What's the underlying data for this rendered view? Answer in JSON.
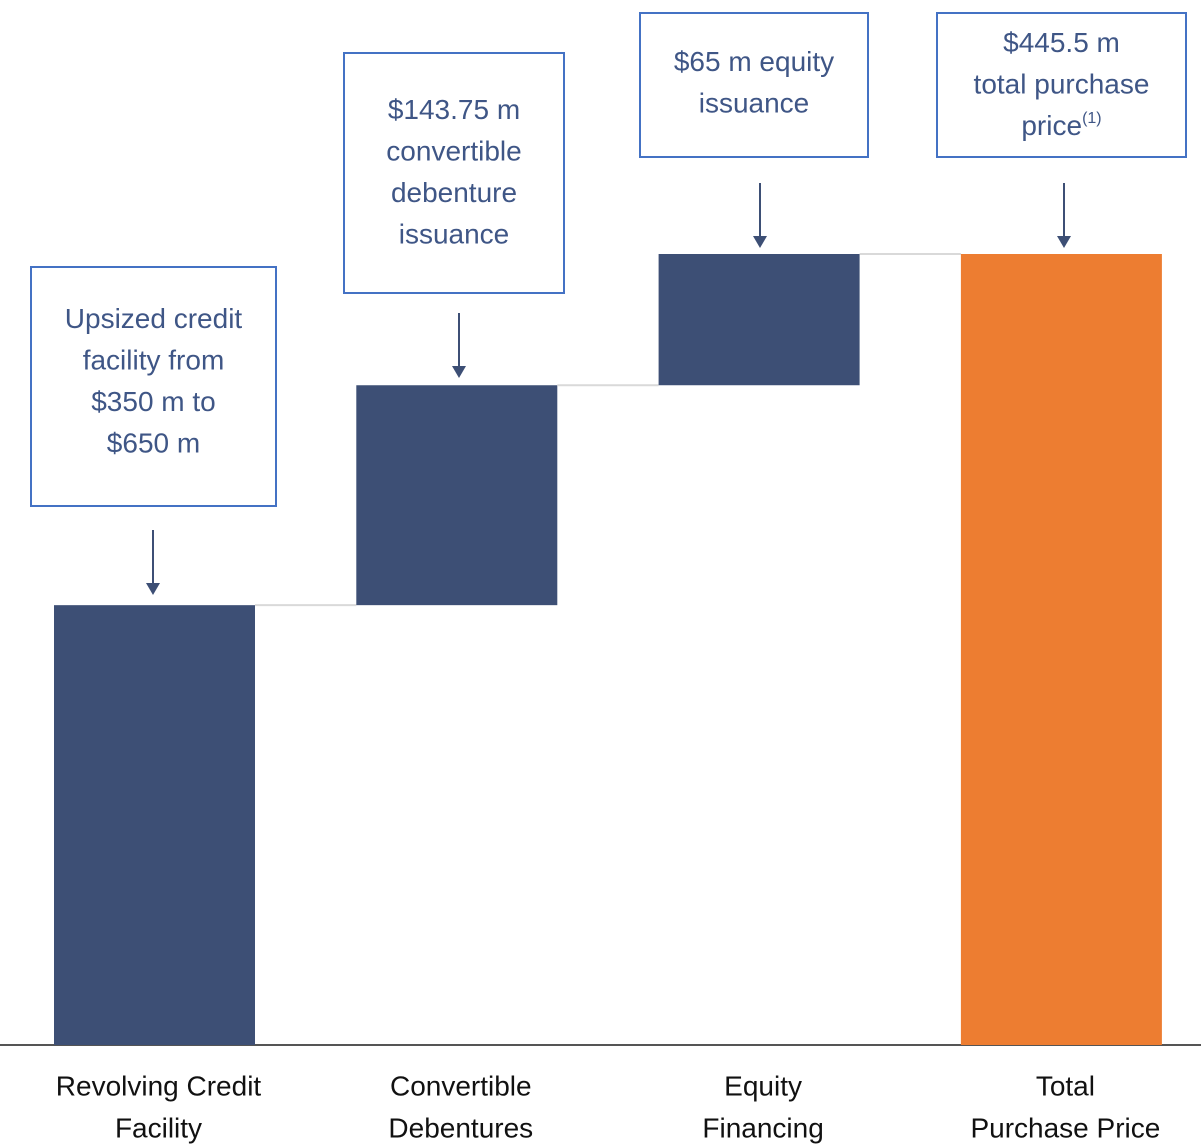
{
  "chart_data": {
    "type": "waterfall",
    "categories": [
      [
        "Revolving Credit",
        "Facility"
      ],
      [
        "Convertible",
        "Debentures"
      ],
      [
        "Equity",
        "Financing"
      ],
      [
        "Total",
        "Purchase Price"
      ]
    ],
    "values": [
      248,
      124,
      74,
      446
    ],
    "is_total": [
      false,
      false,
      false,
      true
    ],
    "colors": [
      "#3d4f75",
      "#3d4f75",
      "#3d4f75",
      "#ed7d31"
    ],
    "annotations": [
      {
        "lines": [
          "Upsized credit",
          "facility from",
          "$350 m to",
          "$650 m"
        ]
      },
      {
        "lines": [
          "$143.75 m",
          "convertible",
          "debenture",
          "issuance"
        ]
      },
      {
        "lines": [
          "$65 m equity",
          "issuance"
        ]
      },
      {
        "lines": [
          "$445.5 m",
          "total purchase",
          "price"
        ],
        "superscript": "(1)"
      }
    ]
  }
}
